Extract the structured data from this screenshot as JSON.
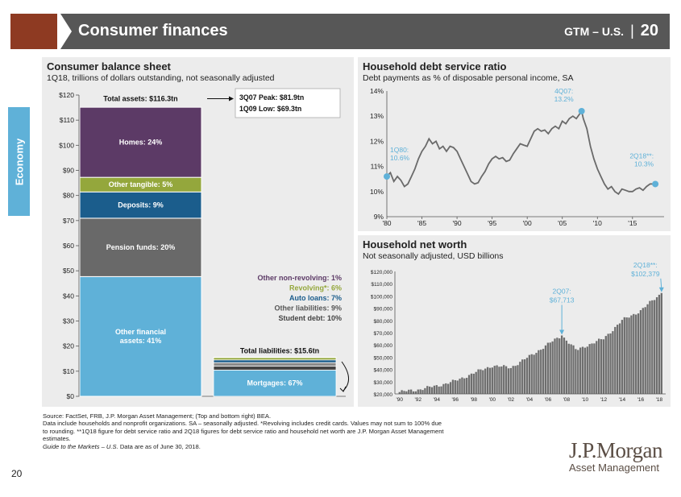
{
  "header": {
    "title": "Consumer finances",
    "series": "GTM – U.S.",
    "separator": "|",
    "page": "20"
  },
  "side_tab": "Economy",
  "colors": {
    "header_red": "#8e3a22",
    "header_gray": "#575757",
    "tab_blue": "#5fb1d8",
    "homes": "#5c3a66",
    "other_tangible": "#94a73c",
    "deposits": "#1b5d8c",
    "pension": "#696969",
    "other_financial": "#5fb1d8",
    "line": "#666666",
    "highlight": "#5fb1d8",
    "bars": "#6e6e6e"
  },
  "chart_data": [
    {
      "type": "bar",
      "title": "Consumer balance sheet",
      "subtitle": "1Q18, trillions of dollars outstanding, not seasonally adjusted",
      "ylim": [
        0,
        120
      ],
      "yticks": [
        "$0",
        "$10",
        "$20",
        "$30",
        "$40",
        "$50",
        "$60",
        "$70",
        "$80",
        "$90",
        "$100",
        "$110",
        "$120"
      ],
      "assets": {
        "total": 116.3,
        "total_label": "Total assets: $116.3tn",
        "segments": [
          {
            "label": "Other financial assets: 41%",
            "share": 41,
            "color": "#5fb1d8"
          },
          {
            "label": "Pension funds: 20%",
            "share": 20,
            "color": "#696969"
          },
          {
            "label": "Deposits: 9%",
            "share": 9,
            "color": "#1b5d8c"
          },
          {
            "label": "Other tangible: 5%",
            "share": 5,
            "color": "#94a73c"
          },
          {
            "label": "Homes: 24%",
            "share": 24,
            "color": "#5c3a66"
          }
        ]
      },
      "peak_box": {
        "peak": "3Q07 Peak: $81.9tn",
        "low": "1Q09 Low: $69.3tn"
      },
      "liabilities": {
        "total": 15.6,
        "total_label": "Total liabilities: $15.6tn",
        "segments": [
          {
            "label": "Mortgages: 67%",
            "share": 67,
            "color": "#5fb1d8"
          },
          {
            "label": "Student debt: 10%",
            "share": 10,
            "color": "#444444"
          },
          {
            "label": "Other liabilities: 9%",
            "share": 9,
            "color": "#8a8a8a"
          },
          {
            "label": "Auto loans: 7%",
            "share": 7,
            "color": "#1b5d8c"
          },
          {
            "label": "Revolving*: 6%",
            "share": 6,
            "color": "#94a73c"
          },
          {
            "label": "Other non-revolving: 1%",
            "share": 1,
            "color": "#5c3a66"
          }
        ]
      }
    },
    {
      "type": "line",
      "title": "Household debt service ratio",
      "subtitle": "Debt payments as % of disposable personal income, SA",
      "ylim": [
        9,
        14
      ],
      "yticks": [
        "9%",
        "10%",
        "11%",
        "12%",
        "13%",
        "14%"
      ],
      "xlim": [
        1980,
        2019.5
      ],
      "xticks": [
        "'80",
        "'85",
        "'90",
        "'95",
        "'00",
        "'05",
        "'10",
        "'15"
      ],
      "x": [
        1980,
        1980.5,
        1981,
        1981.5,
        1982,
        1982.5,
        1983,
        1983.5,
        1984,
        1984.5,
        1985,
        1985.5,
        1986,
        1986.5,
        1987,
        1987.5,
        1988,
        1988.5,
        1989,
        1989.5,
        1990,
        1990.5,
        1991,
        1991.5,
        1992,
        1992.5,
        1993,
        1993.5,
        1994,
        1994.5,
        1995,
        1995.5,
        1996,
        1996.5,
        1997,
        1997.5,
        1998,
        1998.5,
        1999,
        1999.5,
        2000,
        2000.5,
        2001,
        2001.5,
        2002,
        2002.5,
        2003,
        2003.5,
        2004,
        2004.5,
        2005,
        2005.5,
        2006,
        2006.5,
        2007,
        2007.5,
        2007.75,
        2008,
        2008.5,
        2009,
        2009.5,
        2010,
        2010.5,
        2011,
        2011.5,
        2012,
        2012.5,
        2013,
        2013.5,
        2014,
        2014.5,
        2015,
        2015.5,
        2016,
        2016.5,
        2017,
        2017.5,
        2018.25
      ],
      "y": [
        10.6,
        10.75,
        10.4,
        10.6,
        10.45,
        10.2,
        10.3,
        10.6,
        10.9,
        11.3,
        11.6,
        11.8,
        12.1,
        11.9,
        12.0,
        11.7,
        11.8,
        11.6,
        11.8,
        11.75,
        11.6,
        11.3,
        11.0,
        10.7,
        10.4,
        10.3,
        10.35,
        10.6,
        10.8,
        11.1,
        11.3,
        11.4,
        11.3,
        11.35,
        11.2,
        11.25,
        11.5,
        11.7,
        11.9,
        11.85,
        11.8,
        12.1,
        12.4,
        12.5,
        12.4,
        12.45,
        12.3,
        12.5,
        12.6,
        12.5,
        12.8,
        12.7,
        12.9,
        13.0,
        12.9,
        13.1,
        13.2,
        12.9,
        12.5,
        11.8,
        11.3,
        10.9,
        10.6,
        10.3,
        10.1,
        10.2,
        10.0,
        9.9,
        10.1,
        10.05,
        10.0,
        10.0,
        10.1,
        10.15,
        10.05,
        10.2,
        10.3,
        10.3
      ],
      "annotations": [
        {
          "label": "1Q80:",
          "value": "10.6%",
          "x": 1980,
          "y": 10.6
        },
        {
          "label": "4Q07:",
          "value": "13.2%",
          "x": 2007.75,
          "y": 13.2
        },
        {
          "label": "2Q18**:",
          "value": "10.3%",
          "x": 2018.25,
          "y": 10.3
        }
      ]
    },
    {
      "type": "bar",
      "title": "Household net worth",
      "subtitle": "Not seasonally adjusted, USD billions",
      "ylim": [
        20000,
        120000
      ],
      "yticks": [
        "$20,000",
        "$30,000",
        "$40,000",
        "$50,000",
        "$60,000",
        "$70,000",
        "$80,000",
        "$90,000",
        "$100,000",
        "$110,000",
        "$120,000"
      ],
      "xlim": [
        1989.5,
        2018.7
      ],
      "xticks": [
        "'90",
        "'92",
        "'94",
        "'96",
        "'98",
        "'00",
        "'02",
        "'04",
        "'06",
        "'08",
        "'10",
        "'12",
        "'14",
        "'16",
        "'18"
      ],
      "anchors": [
        [
          1990,
          21500
        ],
        [
          1992,
          23500
        ],
        [
          1994,
          26500
        ],
        [
          1996,
          30500
        ],
        [
          1998,
          37000
        ],
        [
          2000,
          43000
        ],
        [
          2002,
          41500
        ],
        [
          2004,
          50500
        ],
        [
          2006,
          60500
        ],
        [
          2007.5,
          67713
        ],
        [
          2009.1,
          55500
        ],
        [
          2010,
          59000
        ],
        [
          2012,
          65000
        ],
        [
          2014,
          80000
        ],
        [
          2016,
          88000
        ],
        [
          2018.25,
          102379
        ]
      ],
      "annotations": [
        {
          "label": "2Q07:",
          "value": "$67,713",
          "x": 2007.5,
          "y": 67713
        },
        {
          "label": "2Q18**:",
          "value": "$102,379",
          "x": 2018.25,
          "y": 102379
        }
      ]
    }
  ],
  "footnotes": {
    "line1": "Source: FactSet, FRB, J.P. Morgan Asset Management; (Top and bottom right) BEA.",
    "line2": "Data include households and nonprofit organizations. SA – seasonally adjusted. *Revolving includes credit cards. Values may not sum to 100% due",
    "line3": "to rounding. **1Q18 figure for debt service ratio and 2Q18 figures for debt service ratio and household net worth are J.P. Morgan Asset Management",
    "line4": "estimates.",
    "line5_italic": "Guide to the Markets – U.S.",
    "line5_rest": " Data are as of June 30, 2018."
  },
  "page_number": "20",
  "logo": {
    "line1": "J.P.Morgan",
    "line2": "Asset Management"
  }
}
